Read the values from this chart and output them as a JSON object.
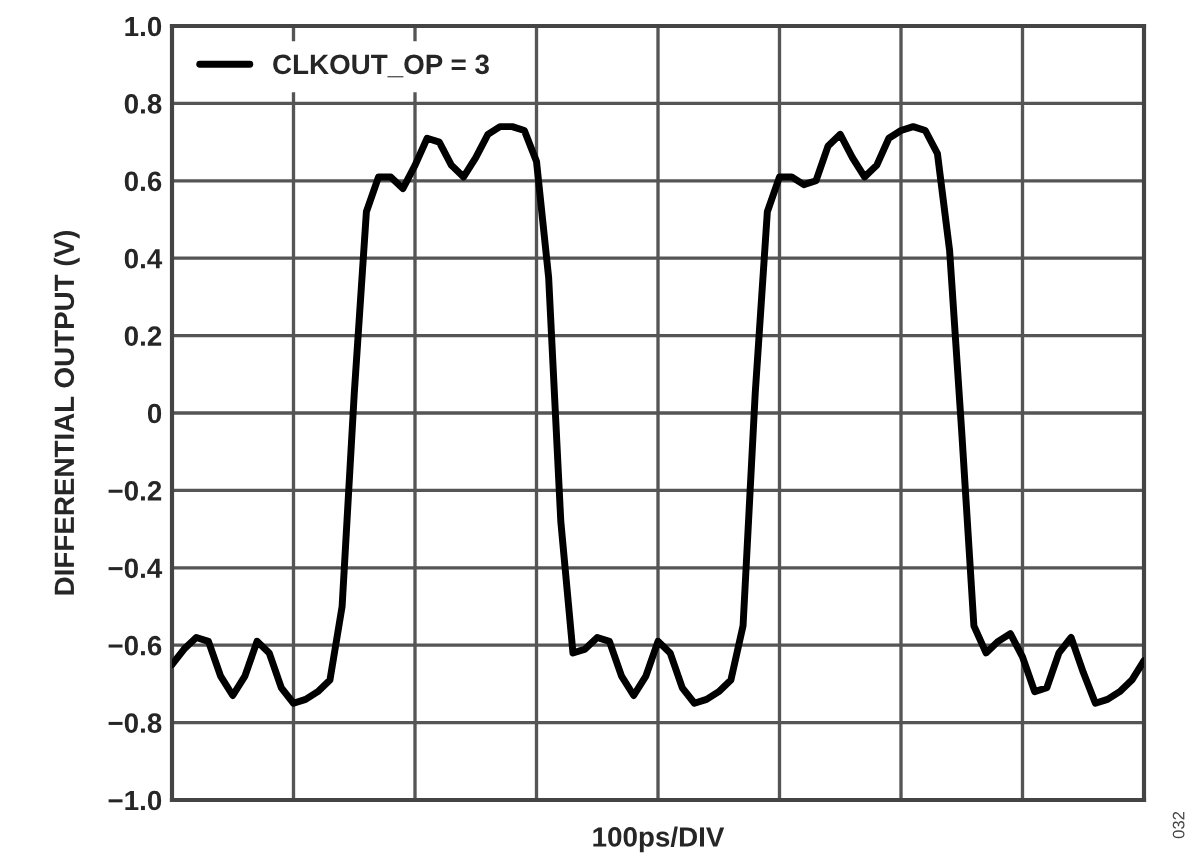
{
  "chart_data": {
    "type": "line",
    "xlabel": "100ps/DIV",
    "ylabel": "DIFFERENTIAL OUTPUT (V)",
    "annotations": [
      "032"
    ],
    "categories": [
      null,
      null,
      null,
      null,
      null,
      null,
      null,
      null,
      null,
      null,
      null,
      null,
      null,
      null,
      null,
      null,
      null,
      null,
      null,
      null,
      null,
      null,
      null,
      null,
      null,
      null,
      null,
      null,
      null,
      null,
      null,
      null,
      null,
      null,
      null,
      null,
      null,
      null,
      null,
      null,
      null,
      null,
      null,
      null,
      null,
      null,
      null,
      null,
      null,
      null,
      null,
      null,
      null,
      null,
      null,
      null,
      null,
      null,
      null,
      null,
      null,
      null,
      null,
      null,
      null,
      null,
      null,
      null,
      null,
      null,
      null,
      null,
      null,
      null,
      null,
      null,
      null,
      null,
      null,
      null,
      null
    ],
    "ylim": [
      -1.0,
      1.0
    ],
    "yticks": [
      {
        "value": -1.0,
        "label": "−1.0"
      },
      {
        "value": -0.8,
        "label": "−0.8"
      },
      {
        "value": -0.6,
        "label": "−0.6"
      },
      {
        "value": -0.4,
        "label": "−0.4"
      },
      {
        "value": -0.2,
        "label": "−0.2"
      },
      {
        "value": 0,
        "label": "0"
      },
      {
        "value": 0.2,
        "label": "0.2"
      },
      {
        "value": 0.4,
        "label": "0.4"
      },
      {
        "value": 0.6,
        "label": "0.6"
      },
      {
        "value": 0.8,
        "label": "0.8"
      },
      {
        "value": 1.0,
        "label": "1.0"
      }
    ],
    "grid": true,
    "legend": "top left",
    "marker": "none",
    "line_style": "solid",
    "series": [
      {
        "name": "CLKOUT_OP = 3",
        "color": "#000000",
        "values": [
          -0.65,
          -0.61,
          -0.58,
          -0.59,
          -0.68,
          -0.73,
          -0.68,
          -0.59,
          -0.62,
          -0.71,
          -0.75,
          -0.74,
          -0.72,
          -0.69,
          -0.5,
          0.05,
          0.52,
          0.61,
          0.61,
          0.58,
          0.64,
          0.71,
          0.7,
          0.64,
          0.61,
          0.66,
          0.72,
          0.74,
          0.74,
          0.73,
          0.65,
          0.35,
          -0.28,
          -0.62,
          -0.61,
          -0.58,
          -0.59,
          -0.68,
          -0.73,
          -0.68,
          -0.59,
          -0.62,
          -0.71,
          -0.75,
          -0.74,
          -0.72,
          -0.69,
          -0.55,
          0.05,
          0.52,
          0.61,
          0.61,
          0.59,
          0.6,
          0.69,
          0.72,
          0.66,
          0.61,
          0.64,
          0.71,
          0.73,
          0.74,
          0.73,
          0.67,
          0.42,
          -0.05,
          -0.55,
          -0.62,
          -0.59,
          -0.57,
          -0.63,
          -0.72,
          -0.71,
          -0.62,
          -0.58,
          -0.67,
          -0.75,
          -0.74,
          -0.72,
          -0.69,
          -0.64
        ]
      }
    ]
  }
}
